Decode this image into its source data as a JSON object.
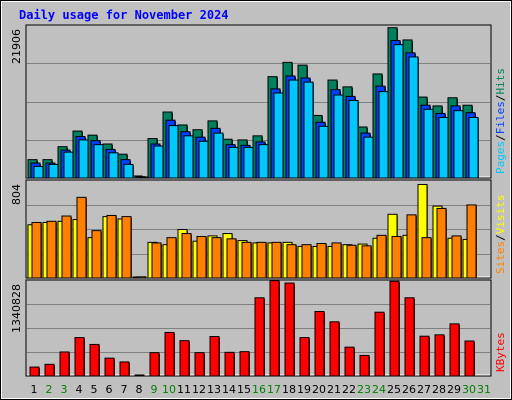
{
  "chart_data": {
    "type": "bar",
    "title": "Daily usage for November 2024",
    "categories": [
      "1",
      "2",
      "3",
      "4",
      "5",
      "6",
      "7",
      "8",
      "9",
      "10",
      "11",
      "12",
      "13",
      "14",
      "15",
      "16",
      "17",
      "18",
      "19",
      "20",
      "21",
      "22",
      "23",
      "24",
      "25",
      "26",
      "27",
      "28",
      "29",
      "30",
      "31"
    ],
    "weekend_days": [
      "2",
      "3",
      "9",
      "10",
      "16",
      "17",
      "23",
      "24",
      "30",
      "31"
    ],
    "panels": [
      {
        "name": "hits-files-pages",
        "max_label": "21906",
        "ymax": 21906,
        "side_labels": [
          {
            "text": "Hits",
            "color": "#00805c"
          },
          {
            "text": "/",
            "color": "#000000"
          },
          {
            "text": "Files",
            "color": "#0040ff"
          },
          {
            "text": "/",
            "color": "#000000"
          },
          {
            "text": "Pages",
            "color": "#00c8ff"
          }
        ],
        "series": [
          {
            "name": "Hits",
            "color": "#00805c",
            "values": [
              2700,
              2700,
              4600,
              6900,
              6300,
              5000,
              3500,
              300,
              5800,
              9700,
              7800,
              7100,
              8400,
              5700,
              5600,
              6200,
              14900,
              17000,
              16600,
              9200,
              14400,
              13400,
              7500,
              15300,
              22100,
              20300,
              11900,
              10600,
              11800,
              10700
            ]
          },
          {
            "name": "Files",
            "color": "#0040ff",
            "values": [
              2200,
              2200,
              4100,
              6100,
              5500,
              4200,
              2700,
              200,
              5000,
              8500,
              6800,
              6000,
              7300,
              4900,
              4800,
              5300,
              13100,
              15000,
              14700,
              8200,
              13000,
              12000,
              6600,
              13500,
              20200,
              18400,
              10700,
              9500,
              10600,
              9600
            ]
          },
          {
            "name": "Pages",
            "color": "#00c8ff",
            "values": [
              1700,
              2000,
              3800,
              5600,
              4900,
              3700,
              2000,
              100,
              4700,
              7700,
              6200,
              5400,
              6600,
              4500,
              4500,
              4900,
              12500,
              14400,
              14100,
              7600,
              12200,
              11400,
              6000,
              12700,
              19600,
              17800,
              10100,
              8900,
              9900,
              8900
            ]
          }
        ]
      },
      {
        "name": "visits-sites",
        "max_label": "804",
        "ymax": 804,
        "side_labels": [
          {
            "text": "Visits",
            "color": "#ffff00"
          },
          {
            "text": "/",
            "color": "#000000"
          },
          {
            "text": "Sites",
            "color": "#ff8000"
          }
        ],
        "series": [
          {
            "name": "Visits",
            "color": "#ffff00",
            "values": [
              455,
              475,
              485,
              500,
              345,
              525,
              505,
              0,
              305,
              285,
              415,
              315,
              360,
              380,
              320,
              300,
              300,
              305,
              270,
              270,
              270,
              285,
              290,
              340,
              545,
              365,
              800,
              615,
              340,
              330
            ]
          },
          {
            "name": "Sites",
            "color": "#ff8000",
            "values": [
              475,
              485,
              530,
              690,
              405,
              535,
              525,
              10,
              300,
              345,
              380,
              355,
              345,
              335,
              305,
              305,
              305,
              285,
              285,
              295,
              300,
              280,
              275,
              365,
              355,
              540,
              345,
              595,
              360,
              625
            ]
          }
        ]
      },
      {
        "name": "kbytes",
        "max_label": "1340828",
        "ymax": 1340828,
        "side_labels": [
          {
            "text": "KBytes",
            "color": "#ff0000"
          }
        ],
        "series": [
          {
            "name": "KBytes",
            "color": "#ff0000",
            "values": [
              130000,
              170000,
              350000,
              560000,
              460000,
              260000,
              205000,
              6000,
              340000,
              635000,
              515000,
              340000,
              575000,
              345000,
              355000,
              1140000,
              1390000,
              1355000,
              560000,
              940000,
              790000,
              420000,
              300000,
              930000,
              1380000,
              1140000,
              580000,
              600000,
              760000,
              510000
            ]
          }
        ]
      }
    ],
    "grid": true,
    "legend": "right-vertical"
  }
}
